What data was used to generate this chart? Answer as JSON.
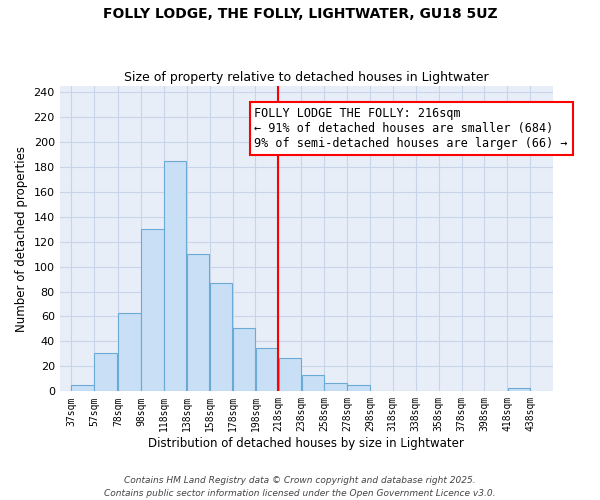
{
  "title": "FOLLY LODGE, THE FOLLY, LIGHTWATER, GU18 5UZ",
  "subtitle": "Size of property relative to detached houses in Lightwater",
  "xlabel": "Distribution of detached houses by size in Lightwater",
  "ylabel": "Number of detached properties",
  "bar_left_edges": [
    37,
    57,
    78,
    98,
    118,
    138,
    158,
    178,
    198,
    218,
    238,
    258,
    278,
    298,
    318,
    338,
    358,
    378,
    398,
    418
  ],
  "bar_heights": [
    5,
    31,
    63,
    130,
    185,
    110,
    87,
    51,
    35,
    27,
    13,
    7,
    5,
    0,
    0,
    0,
    0,
    0,
    0,
    3
  ],
  "bar_widths": [
    20,
    20,
    20,
    20,
    20,
    20,
    20,
    20,
    20,
    20,
    20,
    20,
    20,
    20,
    20,
    20,
    20,
    20,
    20,
    20
  ],
  "bar_color": "#c8dff5",
  "bar_edge_color": "#6aaad4",
  "vline_x": 218,
  "vline_color": "red",
  "annotation_line1": "FOLLY LODGE THE FOLLY: 216sqm",
  "annotation_line2": "← 91% of detached houses are smaller (684)",
  "annotation_line3": "9% of semi-detached houses are larger (66) →",
  "ylim": [
    0,
    245
  ],
  "xlim": [
    27,
    458
  ],
  "xtick_positions": [
    37,
    57,
    78,
    98,
    118,
    138,
    158,
    178,
    198,
    218,
    238,
    258,
    278,
    298,
    318,
    338,
    358,
    378,
    398,
    418,
    438
  ],
  "xtick_labels": [
    "37sqm",
    "57sqm",
    "78sqm",
    "98sqm",
    "118sqm",
    "138sqm",
    "158sqm",
    "178sqm",
    "198sqm",
    "218sqm",
    "238sqm",
    "258sqm",
    "278sqm",
    "298sqm",
    "318sqm",
    "338sqm",
    "358sqm",
    "378sqm",
    "398sqm",
    "418sqm",
    "438sqm"
  ],
  "ytick_positions": [
    0,
    20,
    40,
    60,
    80,
    100,
    120,
    140,
    160,
    180,
    200,
    220,
    240
  ],
  "grid_color": "#c8d4e8",
  "background_color": "#e8eef8",
  "footer_text": "Contains HM Land Registry data © Crown copyright and database right 2025.\nContains public sector information licensed under the Open Government Licence v3.0.",
  "title_fontsize": 10,
  "subtitle_fontsize": 9,
  "annotation_fontsize": 8.5,
  "xlabel_fontsize": 8.5,
  "ylabel_fontsize": 8.5
}
